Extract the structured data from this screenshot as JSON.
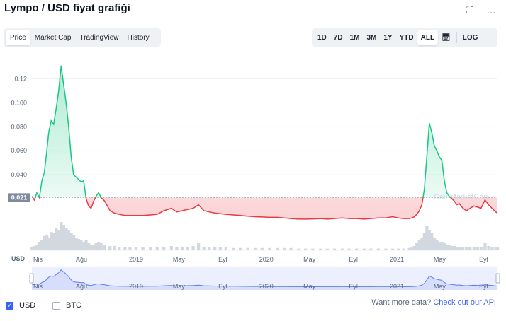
{
  "header": {
    "title": "Lympo / USD fiyat grafiği"
  },
  "icons": {
    "fullscreen": "fullscreen-icon",
    "more": "more-options-icon",
    "calendar": "calendar-icon"
  },
  "tabs": [
    {
      "label": "Price",
      "active": true
    },
    {
      "label": "Market Cap",
      "active": false
    },
    {
      "label": "TradingView",
      "active": false
    },
    {
      "label": "History",
      "active": false
    }
  ],
  "ranges": [
    {
      "label": "1D",
      "active": false
    },
    {
      "label": "7D",
      "active": false
    },
    {
      "label": "1M",
      "active": false
    },
    {
      "label": "3M",
      "active": false
    },
    {
      "label": "1Y",
      "active": false
    },
    {
      "label": "YTD",
      "active": false
    },
    {
      "label": "ALL",
      "active": true
    }
  ],
  "log_label": "LOG",
  "chart_data": {
    "type": "line",
    "watermark": "CoinMarketCap",
    "y_ticks": [
      "0.12",
      "0.100",
      "0.080",
      "0.060",
      "0.040"
    ],
    "y_tick_values": [
      0.12,
      0.1,
      0.08,
      0.06,
      0.04
    ],
    "ylim": [
      0.0,
      0.135
    ],
    "reference_label": "0.021",
    "reference_value": 0.021,
    "x_tick_labels": [
      "Nis",
      "Ağu",
      "2019",
      "May",
      "Eyl",
      "2020",
      "May",
      "Eyl",
      "2021",
      "May",
      "Eyl"
    ],
    "x_tick_dates": [
      "2018-04-01",
      "2018-08-01",
      "2019-01-01",
      "2019-05-01",
      "2019-09-01",
      "2020-01-01",
      "2020-05-01",
      "2020-09-01",
      "2021-01-01",
      "2021-05-01",
      "2021-09-01"
    ],
    "x_range": [
      "2018-03-15",
      "2021-10-10"
    ],
    "currency_label": "USD",
    "colors": {
      "up": "#16c784",
      "down": "#ea3943",
      "nav_line": "#5b7cf0",
      "nav_fill": "#dfe6fd",
      "volume": "#d3d8e0"
    },
    "series": [
      {
        "x": [
          "2018-03-15",
          "2018-03-22",
          "2018-03-29",
          "2018-04-05",
          "2018-04-12",
          "2018-04-19",
          "2018-04-26",
          "2018-05-01",
          "2018-05-08",
          "2018-05-15",
          "2018-05-22",
          "2018-05-29",
          "2018-06-05",
          "2018-06-12",
          "2018-06-19",
          "2018-06-26",
          "2018-07-03",
          "2018-07-10",
          "2018-07-17",
          "2018-07-24",
          "2018-07-31",
          "2018-08-07",
          "2018-08-14",
          "2018-08-21",
          "2018-08-28",
          "2018-09-04",
          "2018-09-11",
          "2018-09-18",
          "2018-09-25",
          "2018-10-05",
          "2018-10-20",
          "2018-11-01",
          "2018-11-15",
          "2018-12-01",
          "2018-12-15",
          "2019-01-01",
          "2019-01-20",
          "2019-02-10",
          "2019-03-01",
          "2019-03-20",
          "2019-04-10",
          "2019-04-25",
          "2019-05-10",
          "2019-05-25",
          "2019-06-10",
          "2019-06-25",
          "2019-07-10",
          "2019-07-25",
          "2019-08-10",
          "2019-08-25",
          "2019-09-10",
          "2019-10-01",
          "2019-10-20",
          "2019-11-10",
          "2019-12-01",
          "2019-12-20",
          "2020-01-10",
          "2020-02-01",
          "2020-02-20",
          "2020-03-10",
          "2020-04-01",
          "2020-04-20",
          "2020-05-10",
          "2020-06-01",
          "2020-06-20",
          "2020-07-10",
          "2020-08-01",
          "2020-08-20",
          "2020-09-10",
          "2020-10-01",
          "2020-10-20",
          "2020-11-10",
          "2020-12-01",
          "2020-12-20",
          "2021-01-05",
          "2021-01-20",
          "2021-02-05",
          "2021-02-12",
          "2021-02-19",
          "2021-02-26",
          "2021-03-05",
          "2021-03-12",
          "2021-03-19",
          "2021-03-26",
          "2021-04-02",
          "2021-04-09",
          "2021-04-16",
          "2021-04-23",
          "2021-04-30",
          "2021-05-07",
          "2021-05-14",
          "2021-05-21",
          "2021-05-28",
          "2021-06-04",
          "2021-06-11",
          "2021-06-18",
          "2021-06-25",
          "2021-07-05",
          "2021-07-15",
          "2021-07-25",
          "2021-08-05",
          "2021-08-15",
          "2021-08-25",
          "2021-09-05",
          "2021-09-15",
          "2021-09-25",
          "2021-10-05",
          "2021-10-10"
        ],
        "y": [
          0.022,
          0.019,
          0.025,
          0.021,
          0.035,
          0.042,
          0.06,
          0.075,
          0.085,
          0.082,
          0.095,
          0.11,
          0.131,
          0.115,
          0.1,
          0.08,
          0.055,
          0.04,
          0.038,
          0.036,
          0.034,
          0.035,
          0.02,
          0.014,
          0.012,
          0.018,
          0.022,
          0.025,
          0.021,
          0.018,
          0.01,
          0.008,
          0.007,
          0.006,
          0.006,
          0.006,
          0.006,
          0.0065,
          0.007,
          0.01,
          0.012,
          0.009,
          0.01,
          0.011,
          0.012,
          0.015,
          0.01,
          0.009,
          0.008,
          0.0075,
          0.007,
          0.0065,
          0.006,
          0.0055,
          0.005,
          0.0048,
          0.0045,
          0.0045,
          0.004,
          0.0035,
          0.003,
          0.003,
          0.0032,
          0.0035,
          0.003,
          0.0035,
          0.004,
          0.0035,
          0.0035,
          0.003,
          0.0035,
          0.004,
          0.004,
          0.005,
          0.004,
          0.0035,
          0.0035,
          0.004,
          0.005,
          0.007,
          0.01,
          0.015,
          0.028,
          0.055,
          0.083,
          0.075,
          0.064,
          0.06,
          0.055,
          0.052,
          0.035,
          0.025,
          0.022,
          0.02,
          0.018,
          0.015,
          0.016,
          0.012,
          0.01,
          0.012,
          0.014,
          0.013,
          0.012,
          0.019,
          0.015,
          0.012,
          0.009,
          0.008
        ],
        "vol": [
          0.1,
          0.15,
          0.2,
          0.3,
          0.35,
          0.5,
          0.55,
          0.45,
          0.65,
          0.6,
          0.8,
          0.7,
          1.0,
          0.9,
          0.8,
          0.7,
          0.6,
          0.55,
          0.45,
          0.4,
          0.35,
          0.3,
          0.35,
          0.25,
          0.2,
          0.2,
          0.25,
          0.3,
          0.25,
          0.2,
          0.15,
          0.15,
          0.1,
          0.1,
          0.1,
          0.1,
          0.1,
          0.1,
          0.1,
          0.12,
          0.15,
          0.12,
          0.1,
          0.12,
          0.15,
          0.25,
          0.12,
          0.1,
          0.1,
          0.1,
          0.1,
          0.08,
          0.08,
          0.08,
          0.08,
          0.08,
          0.08,
          0.08,
          0.08,
          0.08,
          0.06,
          0.06,
          0.06,
          0.06,
          0.06,
          0.06,
          0.06,
          0.06,
          0.06,
          0.06,
          0.06,
          0.06,
          0.06,
          0.06,
          0.06,
          0.06,
          0.08,
          0.1,
          0.15,
          0.25,
          0.35,
          0.45,
          0.6,
          0.85,
          0.7,
          0.6,
          0.45,
          0.35,
          0.3,
          0.3,
          0.25,
          0.2,
          0.18,
          0.15,
          0.15,
          0.12,
          0.12,
          0.1,
          0.1,
          0.1,
          0.12,
          0.12,
          0.12,
          0.25,
          0.15,
          0.12,
          0.1,
          0.1
        ]
      }
    ]
  },
  "footer": {
    "usd_label": "USD",
    "btc_label": "BTC",
    "more_text": "Want more data?",
    "more_link": "Check out our API"
  }
}
